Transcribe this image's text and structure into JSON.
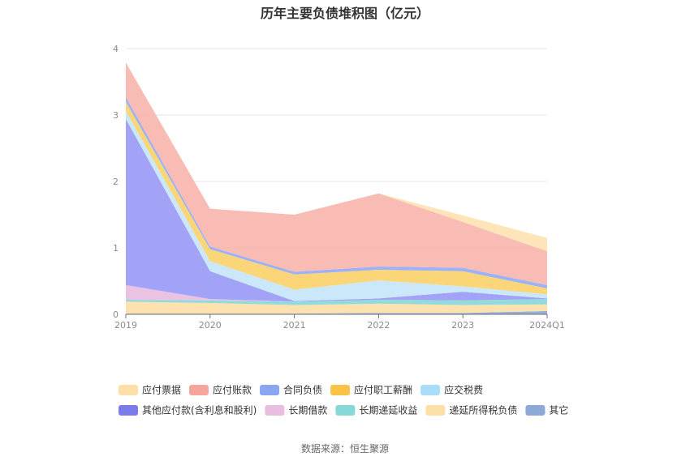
{
  "chart_data": {
    "type": "area",
    "stacked": true,
    "title": "历年主要负债堆积图（亿元）",
    "source": "数据来源：恒生聚源",
    "categories": [
      "2019",
      "2020",
      "2021",
      "2022",
      "2023",
      "2024Q1"
    ],
    "ylim": [
      0,
      4
    ],
    "yticks": [
      "0",
      "1",
      "2",
      "3",
      "4"
    ],
    "grid": true,
    "legend_position": "bottom",
    "series": [
      {
        "name": "其它",
        "color": "#8ea8d8",
        "values": [
          0.01,
          0.01,
          0.01,
          0.02,
          0.02,
          0.05
        ]
      },
      {
        "name": "递延所得税负债",
        "color": "#fddfa8",
        "values": [
          0.18,
          0.16,
          0.13,
          0.14,
          0.12,
          0.1
        ]
      },
      {
        "name": "长期递延收益",
        "color": "#88d8d8",
        "values": [
          0.03,
          0.04,
          0.05,
          0.06,
          0.07,
          0.08
        ]
      },
      {
        "name": "长期借款",
        "color": "#e8bde0",
        "values": [
          0.22,
          0.02,
          0.0,
          0.0,
          0.0,
          0.0
        ]
      },
      {
        "name": "其他应付款(含利息和股利)",
        "color": "#9a9af5",
        "values": [
          2.5,
          0.42,
          0.01,
          0.02,
          0.13,
          0.01
        ]
      },
      {
        "name": "应交税费",
        "color": "#c5e6f8",
        "values": [
          0.12,
          0.15,
          0.17,
          0.27,
          0.08,
          0.06
        ]
      },
      {
        "name": "应付职工薪酬",
        "color": "#fbd36e",
        "values": [
          0.14,
          0.18,
          0.23,
          0.16,
          0.23,
          0.09
        ]
      },
      {
        "name": "合同负债",
        "color": "#94aaf5",
        "values": [
          0.07,
          0.04,
          0.04,
          0.05,
          0.05,
          0.05
        ]
      },
      {
        "name": "应付账款",
        "color": "#f8b6ae",
        "values": [
          0.52,
          0.57,
          0.86,
          1.1,
          0.69,
          0.51
        ]
      },
      {
        "name": "应付票据",
        "color": "#fde2b3",
        "values": [
          0.0,
          0.0,
          0.0,
          0.0,
          0.1,
          0.2
        ]
      }
    ],
    "legend": [
      {
        "name": "应付票据",
        "color": "#fddfa8"
      },
      {
        "name": "应付账款",
        "color": "#f4a59c"
      },
      {
        "name": "合同负债",
        "color": "#8aa6f2"
      },
      {
        "name": "应付职工薪酬",
        "color": "#fac347"
      },
      {
        "name": "应交税费",
        "color": "#a8def9"
      },
      {
        "name": "其他应付款(含利息和股利)",
        "color": "#7b7bea"
      },
      {
        "name": "长期借款",
        "color": "#e8bde0"
      },
      {
        "name": "长期递延收益",
        "color": "#88d8d8"
      },
      {
        "name": "递延所得税负债",
        "color": "#fddfa8"
      },
      {
        "name": "其它",
        "color": "#8ea8d8"
      }
    ]
  }
}
